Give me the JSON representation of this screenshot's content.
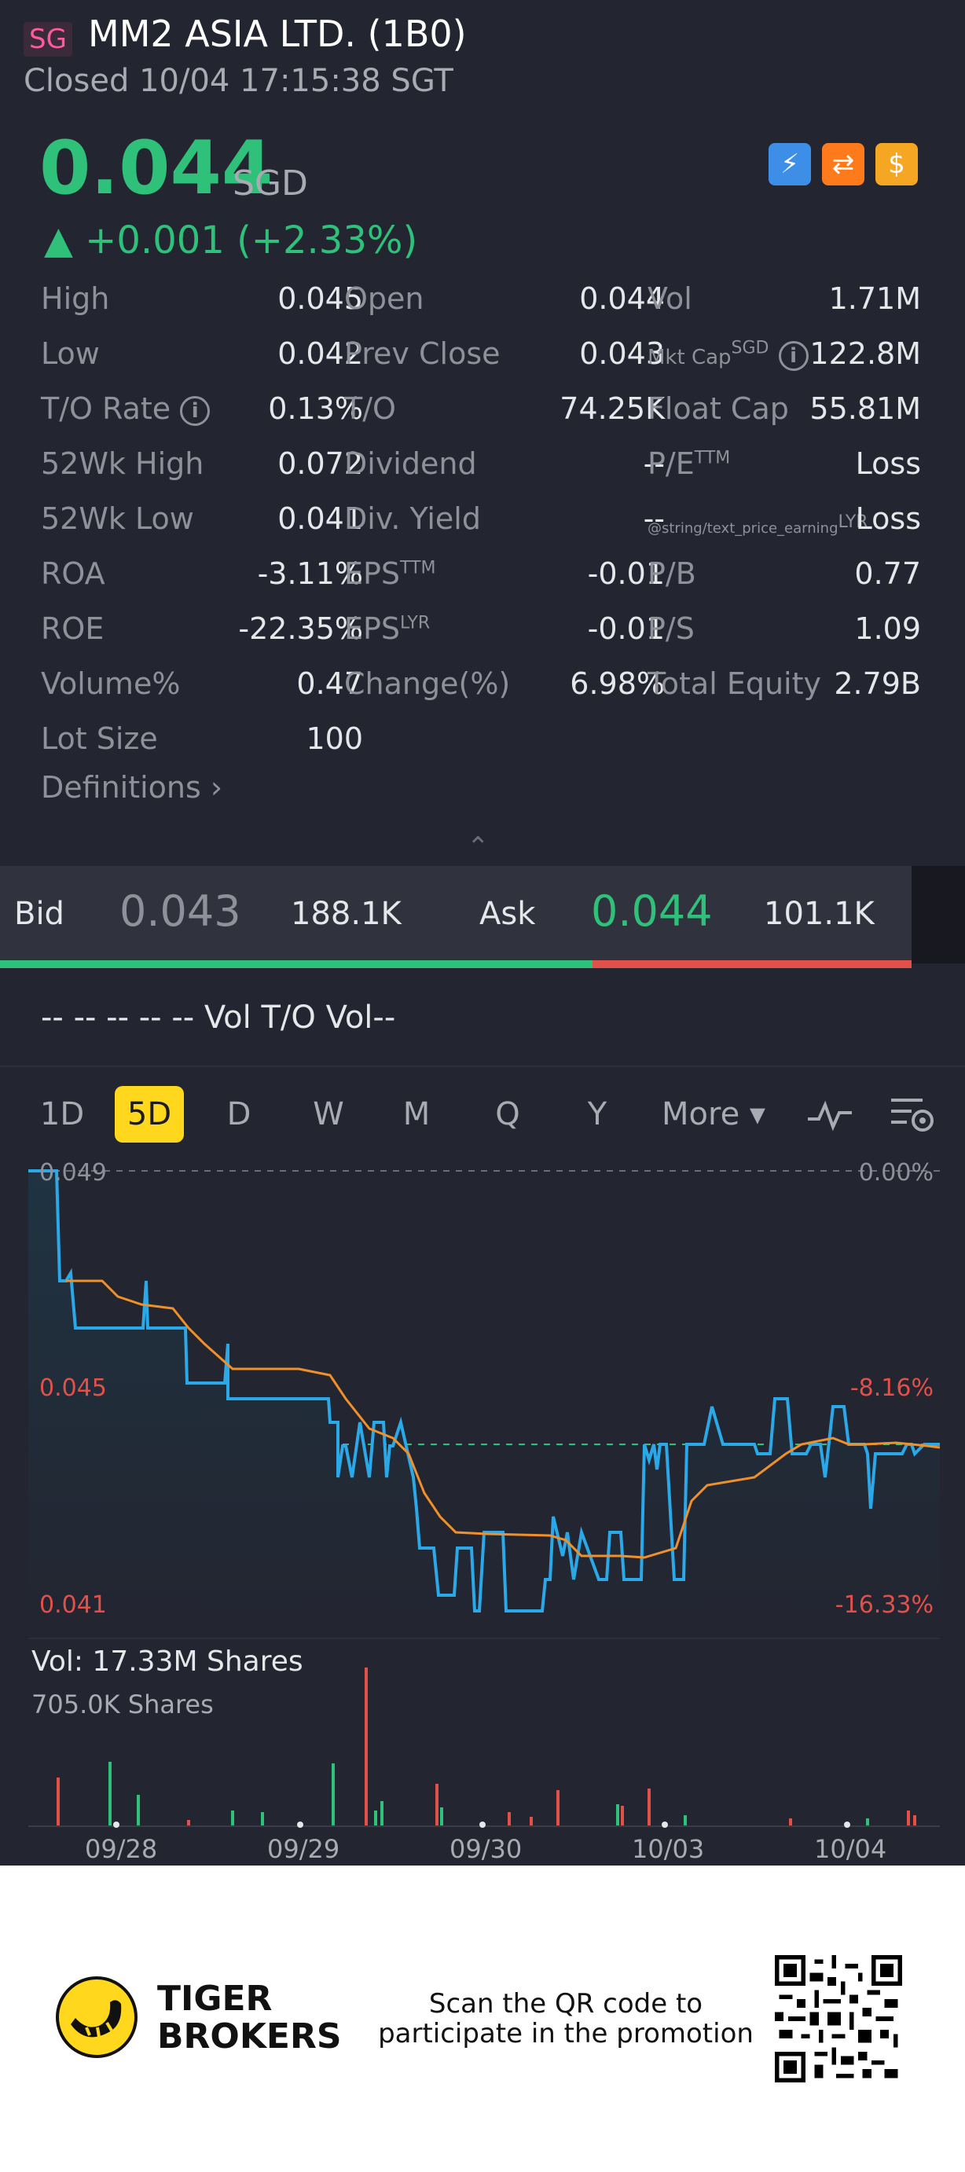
{
  "header": {
    "market_badge": "SG",
    "title": "MM2 ASIA LTD. (1B0)",
    "status": "Closed 10/04 17:15:38 SGT"
  },
  "quote": {
    "price": "0.044",
    "currency": "SGD",
    "change": "▲ +0.001 (+2.33%)"
  },
  "icons": [
    "lightning-icon",
    "swap-icon",
    "dollar-icon"
  ],
  "stats": {
    "high_l": "High",
    "high_v": "0.045",
    "open_l": "Open",
    "open_v": "0.044",
    "vol_l": "Vol",
    "vol_v": "1.71M",
    "low_l": "Low",
    "low_v": "0.042",
    "prev_l": "Prev Close",
    "prev_v": "0.043",
    "mkt_l": "Mkt Cap",
    "mkt_sup": "SGD",
    "mkt_v": "122.8M",
    "tor_l": "T/O Rate",
    "tor_v": "0.13%",
    "to_l": "T/O",
    "to_v": "74.25K",
    "float_l": "Float Cap",
    "float_v": "55.81M",
    "h52_l": "52Wk High",
    "h52_v": "0.072",
    "div_l": "Dividend",
    "div_v": "--",
    "pe_l": "P/E",
    "pe_sup": "TTM",
    "pe_v": "Loss",
    "l52_l": "52Wk Low",
    "l52_v": "0.041",
    "dy_l": "Div. Yield",
    "dy_v": "--",
    "pel_l": "@string/text_price_earning",
    "pel_sup": "LYR",
    "pel_v": "Loss",
    "roa_l": "ROA",
    "roa_v": "-3.11%",
    "eps_l": "EPS",
    "eps_sup": "TTM",
    "eps_v": "-0.01",
    "pb_l": "P/B",
    "pb_v": "0.77",
    "roe_l": "ROE",
    "roe_v": "-22.35%",
    "epsl_l": "EPS",
    "epsl_sup": "LYR",
    "epsl_v": "-0.01",
    "ps_l": "P/S",
    "ps_v": "1.09",
    "volp_l": "Volume%",
    "volp_v": "0.47",
    "chg_l": "Change(%)",
    "chg_v": "6.98%",
    "te_l": "Total Equity",
    "te_v": "2.79B",
    "lot_l": "Lot Size",
    "lot_v": "100",
    "info": "i"
  },
  "definitions": "Definitions",
  "collapse_caret": "⌃",
  "bidask": {
    "bid_label": "Bid",
    "bid_price": "0.043",
    "bid_size": "188.1K",
    "ask_label": "Ask",
    "ask_price": "0.044",
    "ask_size": "101.1K",
    "bid_share": 0.65
  },
  "vol_line": "-- -- -- -- --  Vol   T/O Vol--",
  "tabs": [
    "1D",
    "5D",
    "D",
    "W",
    "M",
    "Q",
    "Y",
    "More ▾"
  ],
  "active_tab": "5D",
  "chart": {
    "y_top": "0.049",
    "y_mid": "0.045",
    "y_bot": "0.041",
    "p_top": "0.00%",
    "p_mid": "-8.16%",
    "p_bot": "-16.33%",
    "vol_title": "Vol:  17.33M Shares",
    "vol_max": "705.0K Shares",
    "dates": [
      "09/28",
      "09/29",
      "09/30",
      "10/03",
      "10/04"
    ]
  },
  "chart_data": {
    "type": "line",
    "x": [
      "09/28",
      "09/29",
      "09/30",
      "10/03",
      "10/04"
    ],
    "ylim": [
      0.041,
      0.049
    ],
    "series": [],
    "volume_max": "705.0K Shares",
    "volume_total": "17.33M Shares"
  },
  "colors": {
    "up": "#2fc07a",
    "down": "#e2504a",
    "price_line": "#2aa8e8",
    "avg_line": "#f0902a"
  },
  "footer": {
    "brand_1": "TIGER",
    "brand_2": "BROKERS",
    "promo_1": "Scan the QR code to",
    "promo_2": "participate in the promotion"
  }
}
